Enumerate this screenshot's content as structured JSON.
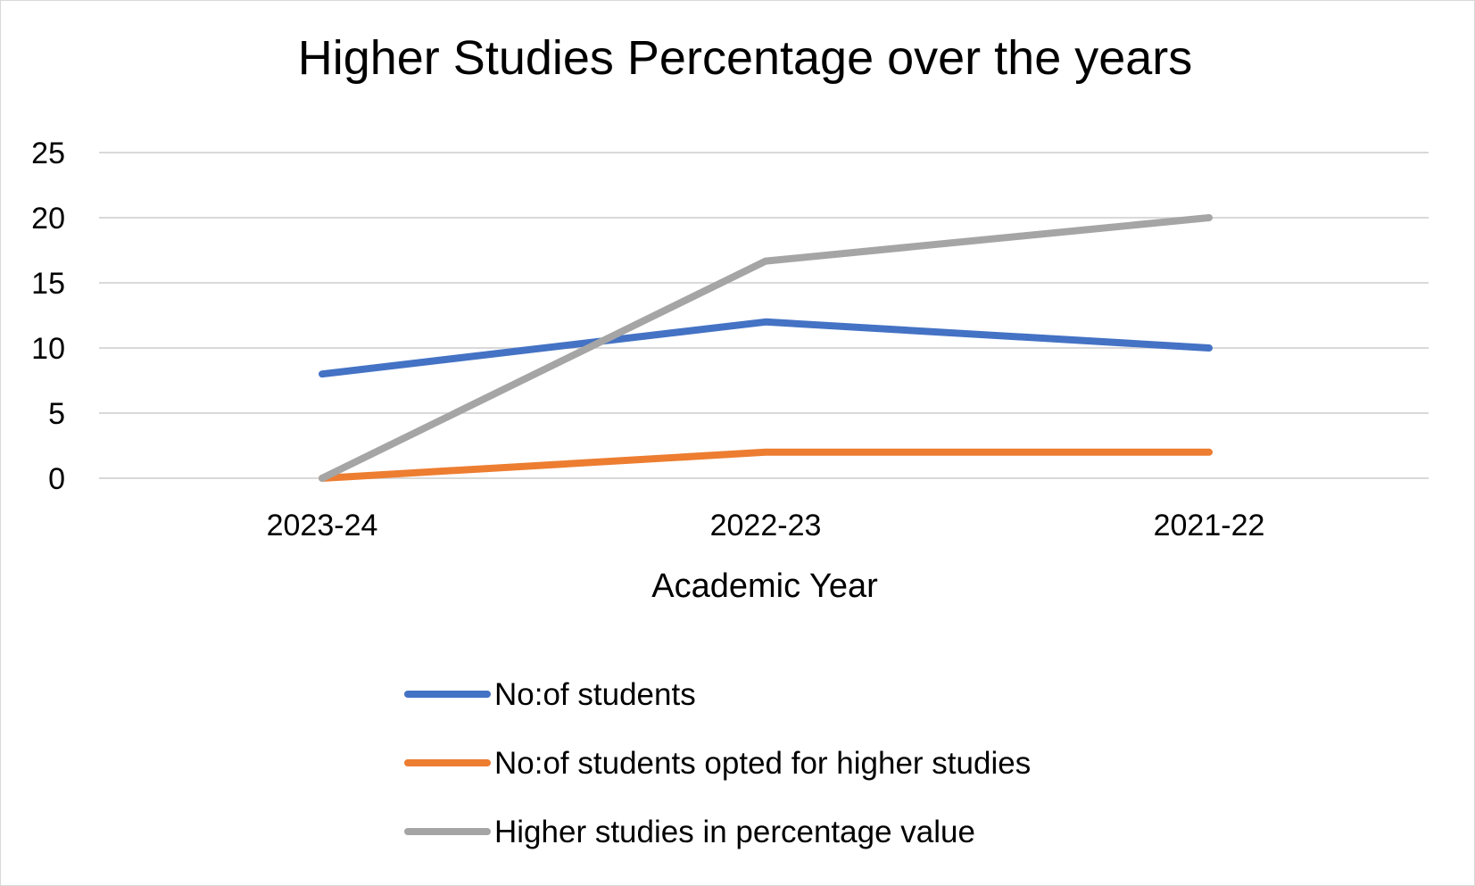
{
  "chart_data": {
    "type": "line",
    "title": "Higher Studies Percentage over the years",
    "xlabel": "Academic Year",
    "ylabel": "",
    "categories": [
      "2023-24",
      "2022-23",
      "2021-22"
    ],
    "ylim": [
      0,
      25
    ],
    "yticks": [
      0,
      5,
      10,
      15,
      20,
      25
    ],
    "grid": true,
    "legend_position": "bottom",
    "series": [
      {
        "name": "No:of students",
        "values": [
          8,
          12,
          10
        ],
        "color": "#4472c4"
      },
      {
        "name": "No:of students opted for higher studies",
        "values": [
          0,
          2,
          2
        ],
        "color": "#ed7d31"
      },
      {
        "name": "Higher studies in percentage value",
        "values": [
          0,
          16.67,
          20
        ],
        "color": "#a5a5a5"
      }
    ]
  }
}
